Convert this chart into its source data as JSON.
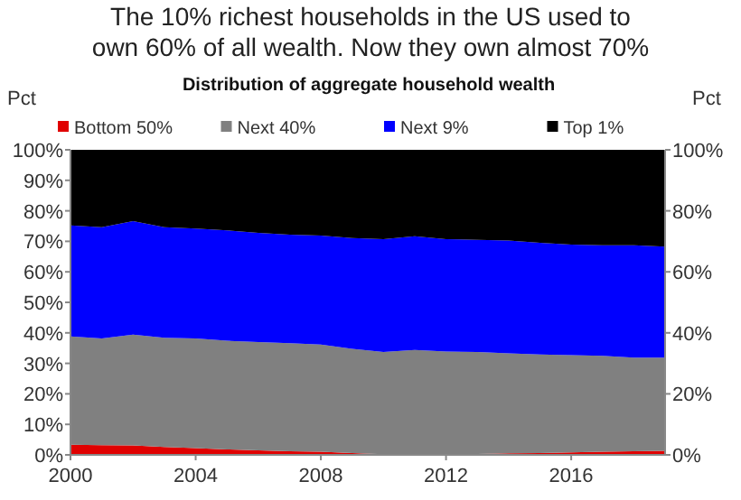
{
  "chart_data": {
    "type": "area",
    "stacked": true,
    "title": "The 10% richest households in the US used to own 60% of all wealth. Now they own almost 70%",
    "subtitle": "Distribution of aggregate household wealth",
    "ylabel": "Pct",
    "y2label": "Pct",
    "x": [
      2000,
      2001,
      2002,
      2003,
      2004,
      2005,
      2006,
      2007,
      2008,
      2009,
      2010,
      2011,
      2012,
      2013,
      2014,
      2015,
      2016,
      2017,
      2018,
      2019
    ],
    "xlim": [
      2000,
      2019
    ],
    "xticks": [
      2000,
      2004,
      2008,
      2012,
      2016
    ],
    "ylim": [
      0,
      100
    ],
    "yticks": [
      {
        "value": 0,
        "label": "0%"
      },
      {
        "value": 10,
        "label": "10%"
      },
      {
        "value": 20,
        "label": "20%"
      },
      {
        "value": 30,
        "label": "30%"
      },
      {
        "value": 40,
        "label": "40%"
      },
      {
        "value": 50,
        "label": "50%"
      },
      {
        "value": 60,
        "label": "60%"
      },
      {
        "value": 70,
        "label": "70%"
      },
      {
        "value": 80,
        "label": "80%"
      },
      {
        "value": 90,
        "label": "90%"
      },
      {
        "value": 100,
        "label": "100%"
      }
    ],
    "y2lim": [
      0,
      100
    ],
    "y2ticks": [
      {
        "value": 0,
        "label": "0%"
      },
      {
        "value": 20,
        "label": "20%"
      },
      {
        "value": 40,
        "label": "40%"
      },
      {
        "value": 60,
        "label": "60%"
      },
      {
        "value": 80,
        "label": "80%"
      },
      {
        "value": 100,
        "label": "100%"
      }
    ],
    "legend": "top",
    "grid": false,
    "series": [
      {
        "name": "Bottom 50%",
        "color": "#e00000",
        "values": [
          3.3,
          3.2,
          3.1,
          2.6,
          2.2,
          1.8,
          1.5,
          1.2,
          1.0,
          0.6,
          0.2,
          0.2,
          0.2,
          0.3,
          0.5,
          0.6,
          0.8,
          1.0,
          1.2,
          1.3
        ]
      },
      {
        "name": "Next 40%",
        "color": "#808080",
        "values": [
          35.5,
          35.0,
          36.3,
          35.8,
          36.0,
          35.6,
          35.5,
          35.4,
          35.2,
          34.2,
          33.5,
          34.2,
          33.7,
          33.4,
          32.8,
          32.3,
          31.9,
          31.5,
          30.7,
          30.6
        ]
      },
      {
        "name": "Next 9%",
        "color": "#0000ff",
        "values": [
          36.4,
          36.4,
          37.2,
          36.2,
          36.0,
          36.2,
          35.8,
          35.6,
          35.7,
          36.3,
          37.0,
          37.3,
          36.8,
          36.8,
          37.0,
          36.6,
          36.2,
          36.2,
          36.8,
          36.4
        ]
      },
      {
        "name": "Top 1%",
        "color": "#000000",
        "values": [
          24.8,
          25.4,
          23.4,
          25.4,
          25.8,
          26.4,
          27.2,
          27.8,
          28.1,
          28.9,
          29.3,
          28.3,
          29.3,
          29.5,
          29.7,
          30.5,
          31.1,
          31.3,
          31.3,
          31.7
        ]
      }
    ]
  }
}
